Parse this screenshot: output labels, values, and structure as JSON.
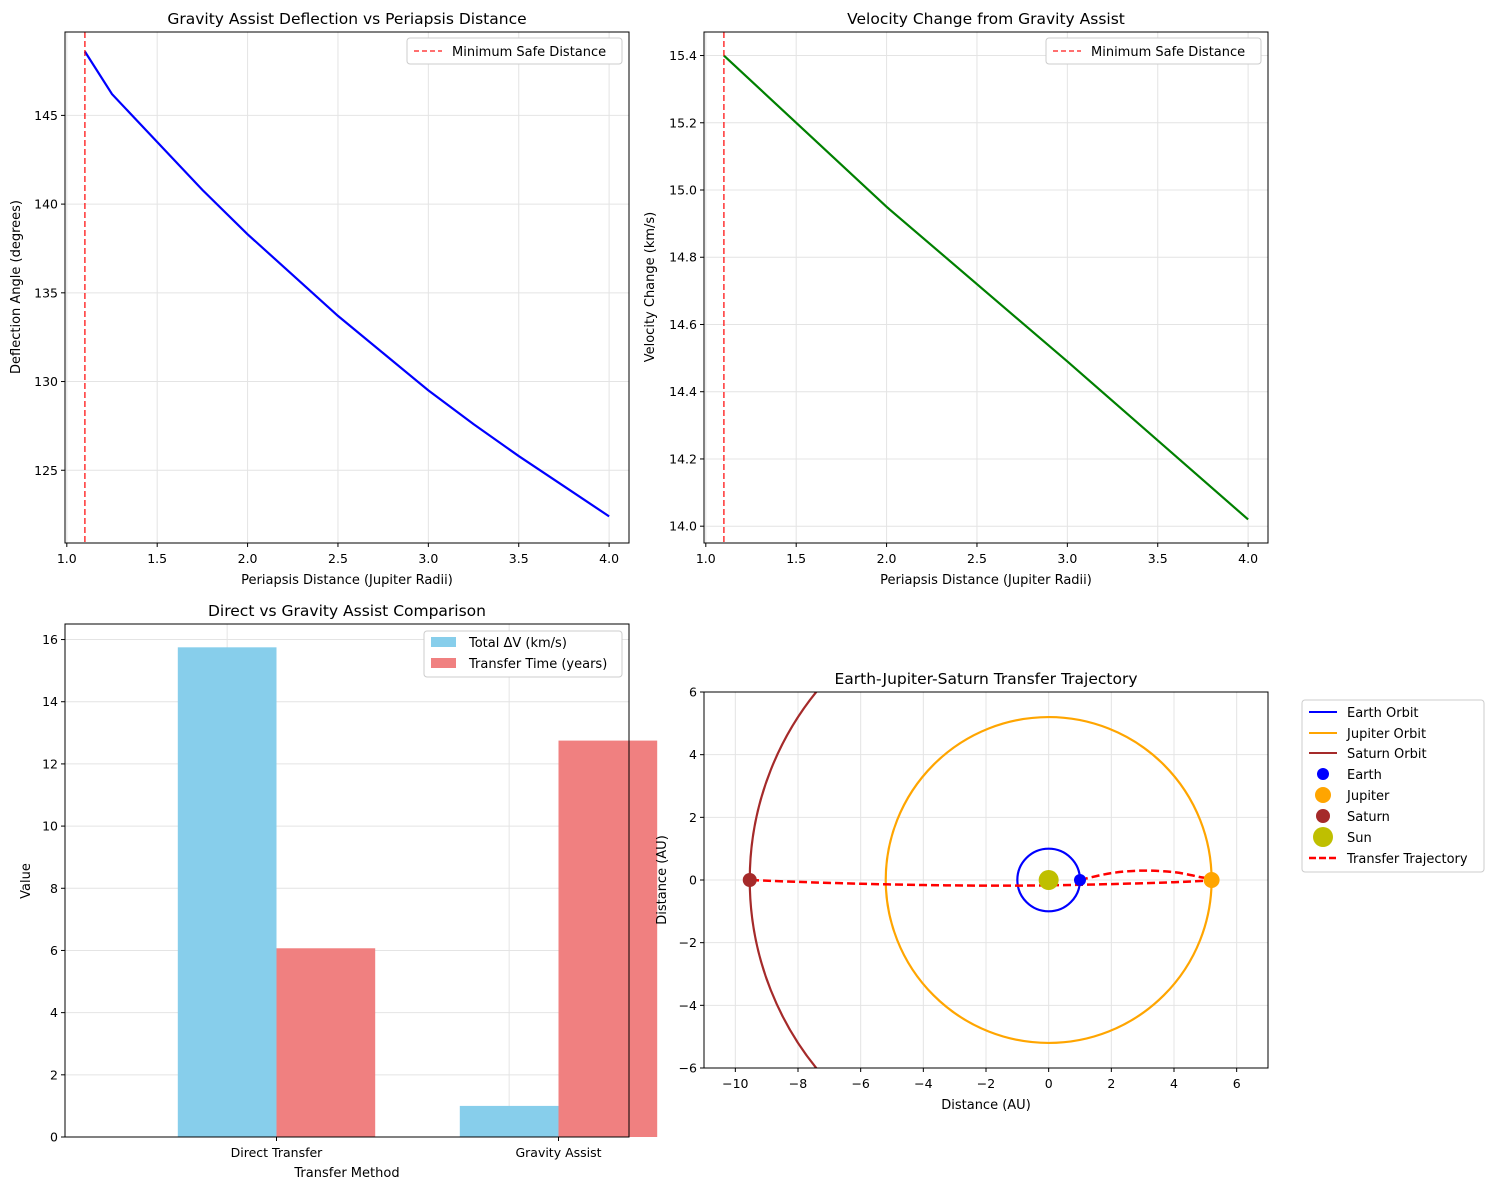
{
  "chart_data": [
    {
      "type": "line",
      "title": "Gravity Assist Deflection vs Periapsis Distance",
      "xlabel": "Periapsis Distance (Jupiter Radii)",
      "ylabel": "Deflection Angle (degrees)",
      "xlim": [
        0.99,
        4.11
      ],
      "ylim": [
        120.9,
        149.7
      ],
      "xticks": [
        1.0,
        1.5,
        2.0,
        2.5,
        3.0,
        3.5,
        4.0
      ],
      "yticks": [
        125,
        130,
        135,
        140,
        145
      ],
      "xtick_labels": [
        "1.0",
        "1.5",
        "2.0",
        "2.5",
        "3.0",
        "3.5",
        "4.0"
      ],
      "ytick_labels": [
        "125",
        "130",
        "135",
        "140",
        "145"
      ],
      "grid": true,
      "legend_position": "top-right",
      "series": [
        {
          "name": "",
          "color": "#0000ff",
          "x": [
            1.1,
            1.25,
            1.5,
            1.75,
            2.0,
            2.25,
            2.5,
            2.75,
            3.0,
            3.25,
            3.5,
            3.75,
            4.0
          ],
          "y": [
            148.6,
            146.2,
            143.5,
            140.8,
            138.3,
            136.0,
            133.7,
            131.6,
            129.5,
            127.6,
            125.8,
            124.1,
            122.4
          ]
        }
      ],
      "vlines": [
        {
          "name": "Minimum Safe Distance",
          "x": 1.1,
          "color": "#ff0000"
        }
      ]
    },
    {
      "type": "line",
      "title": "Velocity Change from Gravity Assist",
      "xlabel": "Periapsis Distance (Jupiter Radii)",
      "ylabel": "Velocity Change (km/s)",
      "xlim": [
        0.99,
        4.11
      ],
      "ylim": [
        13.95,
        15.47
      ],
      "xticks": [
        1.0,
        1.5,
        2.0,
        2.5,
        3.0,
        3.5,
        4.0
      ],
      "yticks": [
        14.0,
        14.2,
        14.4,
        14.6,
        14.8,
        15.0,
        15.2,
        15.4
      ],
      "xtick_labels": [
        "1.0",
        "1.5",
        "2.0",
        "2.5",
        "3.0",
        "3.5",
        "4.0"
      ],
      "ytick_labels": [
        "14.0",
        "14.2",
        "14.4",
        "14.6",
        "14.8",
        "15.0",
        "15.2",
        "15.4"
      ],
      "grid": true,
      "legend_position": "top-right",
      "series": [
        {
          "name": "",
          "color": "#008000",
          "x": [
            1.1,
            2.0,
            3.0,
            4.0
          ],
          "y": [
            15.4,
            14.95,
            14.49,
            14.02
          ]
        }
      ],
      "vlines": [
        {
          "name": "Minimum Safe Distance",
          "x": 1.1,
          "color": "#ff0000"
        }
      ]
    },
    {
      "type": "bar",
      "title": "Direct vs Gravity Assist Comparison",
      "xlabel": "Transfer Method",
      "ylabel": "Value",
      "categories": [
        "Direct Transfer",
        "Gravity Assist"
      ],
      "ylim": [
        0,
        16.5
      ],
      "yticks": [
        0,
        2,
        4,
        6,
        8,
        10,
        12,
        14,
        16
      ],
      "ytick_labels": [
        "0",
        "2",
        "4",
        "6",
        "8",
        "10",
        "12",
        "14",
        "16"
      ],
      "grid": true,
      "legend_position": "top-right",
      "series": [
        {
          "name": "Total ΔV (km/s)",
          "color": "#87ceeb",
          "values": [
            15.75,
            1.0
          ]
        },
        {
          "name": "Transfer Time (years)",
          "color": "#f08080",
          "values": [
            6.07,
            12.75
          ]
        }
      ]
    },
    {
      "type": "line",
      "title": "Earth-Jupiter-Saturn Transfer Trajectory",
      "xlabel": "Distance (AU)",
      "ylabel": "Distance (AU)",
      "xlim": [
        -11,
        7
      ],
      "ylim": [
        -6,
        6
      ],
      "xticks": [
        -10,
        -8,
        -6,
        -4,
        -2,
        0,
        2,
        4,
        6
      ],
      "yticks": [
        -6,
        -4,
        -2,
        0,
        2,
        4,
        6
      ],
      "xtick_labels": [
        "−10",
        "−8",
        "−6",
        "−4",
        "−2",
        "0",
        "2",
        "4",
        "6"
      ],
      "ytick_labels": [
        "−6",
        "−4",
        "−2",
        "0",
        "2",
        "4",
        "6"
      ],
      "grid": true,
      "legend_position": "outside-right",
      "orbits": [
        {
          "name": "Earth Orbit",
          "radius": 1.0,
          "color": "#0000ff"
        },
        {
          "name": "Jupiter Orbit",
          "radius": 5.2,
          "color": "#ffa500"
        },
        {
          "name": "Saturn Orbit",
          "radius": 9.54,
          "color": "#a52a2a"
        }
      ],
      "bodies": [
        {
          "name": "Earth",
          "x": 1.0,
          "y": 0,
          "color": "#0000ff",
          "size": 6
        },
        {
          "name": "Jupiter",
          "x": 5.2,
          "y": 0,
          "color": "#ffa500",
          "size": 8
        },
        {
          "name": "Saturn",
          "x": -9.54,
          "y": 0,
          "color": "#a52a2a",
          "size": 7
        },
        {
          "name": "Sun",
          "x": 0,
          "y": 0,
          "color": "#bfbf00",
          "size": 10
        }
      ],
      "trajectory": {
        "name": "Transfer Trajectory",
        "color": "#ff0000",
        "x": [
          1.0,
          2.0,
          3.0,
          4.0,
          4.8,
          5.2,
          4.0,
          2.0,
          0.0,
          -2.0,
          -4.0,
          -6.0,
          -8.0,
          -9.54
        ],
        "y": [
          0.0,
          0.22,
          0.3,
          0.25,
          0.1,
          0.0,
          -0.07,
          -0.13,
          -0.17,
          -0.18,
          -0.16,
          -0.12,
          -0.06,
          0.0
        ]
      }
    }
  ]
}
